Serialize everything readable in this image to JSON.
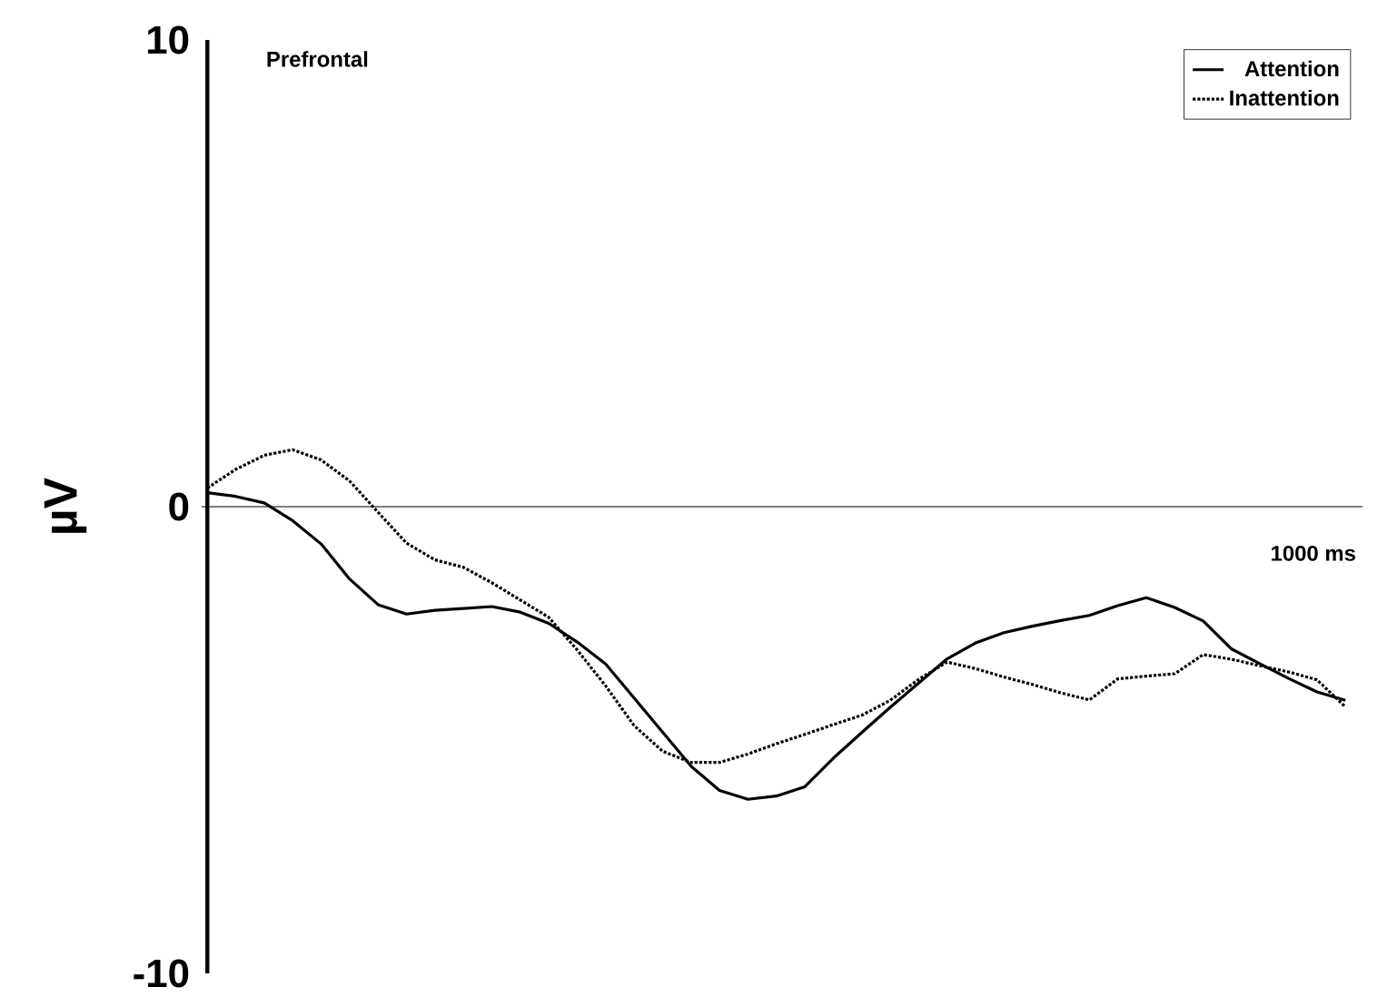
{
  "chart_data": {
    "type": "line",
    "ylabel": "µV",
    "annotations": [
      "Prefrontal",
      "1000 ms"
    ],
    "legend": "top right",
    "ylim": [
      -10,
      10
    ],
    "yticks": [
      {
        "value": 10,
        "label": "10"
      },
      {
        "value": 0,
        "label": "0"
      },
      {
        "value": -10,
        "label": "-10"
      }
    ],
    "categories": [
      null,
      null,
      null,
      null,
      null,
      null,
      null,
      null,
      null,
      null,
      null,
      null,
      null,
      null,
      null,
      null,
      null,
      null,
      null,
      null,
      null,
      null,
      null,
      null,
      null,
      null,
      null,
      null,
      null,
      null,
      null,
      null,
      null,
      null,
      null,
      null,
      null,
      null,
      null,
      null,
      null
    ],
    "series": [
      {
        "name": "Attention",
        "color": "#000000",
        "line_style": "solid",
        "values": [
          0.3,
          0.22,
          0.08,
          -0.3,
          -0.8,
          -1.55,
          -2.1,
          -2.3,
          -2.22,
          -2.18,
          -2.14,
          -2.26,
          -2.5,
          -2.9,
          -3.37,
          -4.1,
          -4.83,
          -5.56,
          -6.08,
          -6.27,
          -6.2,
          -6.0,
          -5.39,
          -4.84,
          -4.3,
          -3.78,
          -3.26,
          -2.92,
          -2.7,
          -2.56,
          -2.44,
          -2.33,
          -2.12,
          -1.95,
          -2.16,
          -2.45,
          -3.05,
          -3.37,
          -3.68,
          -3.97,
          -4.15
        ]
      },
      {
        "name": "Inattention",
        "color": "#000000",
        "line_style": "dotted",
        "values": [
          0.4,
          0.8,
          1.1,
          1.22,
          1.0,
          0.55,
          -0.12,
          -0.78,
          -1.14,
          -1.3,
          -1.63,
          -2.0,
          -2.37,
          -3.07,
          -3.84,
          -4.69,
          -5.24,
          -5.48,
          -5.48,
          -5.3,
          -5.08,
          -4.88,
          -4.67,
          -4.47,
          -4.15,
          -3.7,
          -3.33,
          -3.47,
          -3.65,
          -3.81,
          -3.99,
          -4.14,
          -3.69,
          -3.63,
          -3.58,
          -3.17,
          -3.27,
          -3.41,
          -3.54,
          -3.71,
          -4.29
        ]
      }
    ]
  }
}
